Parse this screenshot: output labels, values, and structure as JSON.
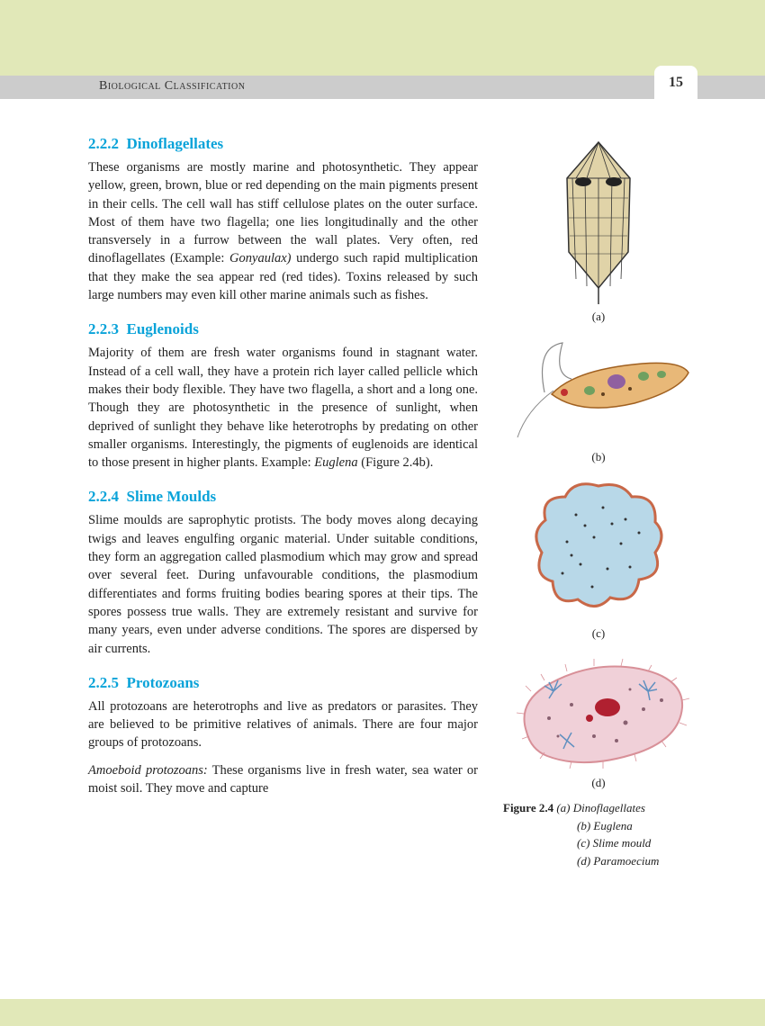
{
  "header": {
    "title": "Biological Classification",
    "page_number": "15"
  },
  "sections": [
    {
      "num": "2.2.2",
      "title": "Dinoflagellates",
      "body_html": "These organisms are mostly marine and photosynthetic. They appear yellow, green, brown, blue or red depending on the main pigments present in their cells. The cell wall has stiff cellulose plates on the outer surface. Most of them have two flagella; one lies longitudinally and the other transversely in a furrow between the wall plates. Very often, red dinoflagellates (Example: <span class='ital'>Gonyaulax)</span> undergo such rapid multiplication that they make the sea appear red (red tides). Toxins released by such large numbers may even kill other marine animals such as fishes."
    },
    {
      "num": "2.2.3",
      "title": "Euglenoids",
      "body_html": "Majority of them are fresh water organisms found in stagnant water. Instead of a cell wall, they have a protein rich layer called pellicle which makes their body flexible. They have two flagella, a short and a long one. Though they are photosynthetic in the presence of sunlight, when deprived of sunlight they behave like heterotrophs by predating on other smaller organisms. Interestingly, the pigments of euglenoids are identical to those present in higher plants. Example: <span class='ital'>Euglena</span> (Figure 2.4b)."
    },
    {
      "num": "2.2.4",
      "title": "Slime Moulds",
      "body_html": "Slime moulds are saprophytic protists. The body moves along decaying twigs and leaves engulfing organic material. Under suitable conditions, they form an aggregation called plasmodium which may grow and spread over several feet. During unfavourable conditions, the plasmodium differentiates and forms fruiting bodies bearing spores at their tips. The spores possess true walls. They are extremely resistant and survive for many years, even under adverse conditions. The spores are dispersed by air currents."
    },
    {
      "num": "2.2.5",
      "title": "Protozoans",
      "body_html": "All protozoans are heterotrophs and live as predators or parasites. They are believed to be primitive relatives of animals. There are four major groups of protozoans."
    }
  ],
  "trailing_para_html": "<span class='ital'>Amoeboid protozoans:</span> These organisms live in fresh water, sea water or moist soil. They move and capture",
  "figures": {
    "labels": [
      "(a)",
      "(b)",
      "(c)",
      "(d)"
    ],
    "caption_lead": "Figure 2.4",
    "caption_items": [
      "(a) Dinoflagellates",
      "(b) Euglena",
      "(c) Slime mould",
      "(d) Paramoecium"
    ]
  },
  "colors": {
    "band": "#e1e8b8",
    "header_bar": "#cccccc",
    "heading": "#0aa3d9",
    "dino_fill": "#e0d3a8",
    "euglena_fill": "#e8b878",
    "slime_fill": "#b8d8e8",
    "slime_border": "#c86848",
    "para_fill": "#f0d0d8",
    "para_border": "#d89098"
  }
}
